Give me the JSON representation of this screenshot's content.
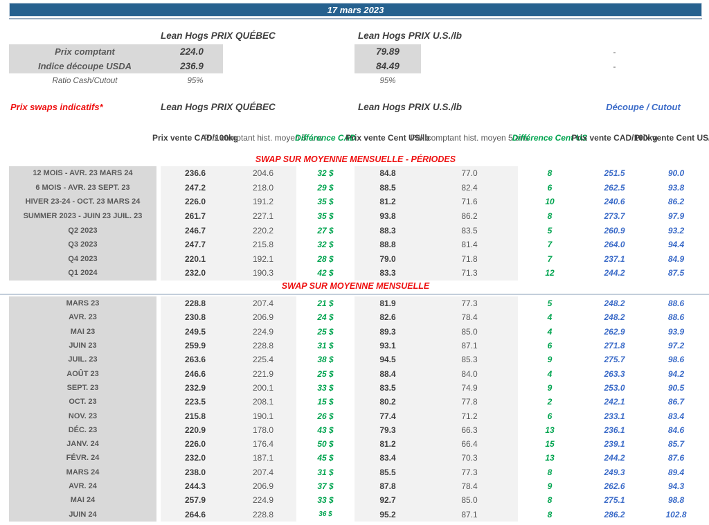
{
  "colors": {
    "bar_blue": "#26618F",
    "label_gray": "#D9D9D9",
    "block_gray": "#F2F2F2",
    "green": "#00A44F",
    "blue": "#3B6BC8",
    "red": "#EE1111"
  },
  "title_bar": {
    "date": "17 mars 2023"
  },
  "summary": {
    "quebec_header": "Lean Hogs PRIX QUÉBEC",
    "us_header": "Lean Hogs PRIX U.S./lb",
    "rows": [
      {
        "label": "Prix comptant",
        "quebec": "224.0",
        "us": "79.89",
        "right": "-"
      },
      {
        "label": "Indice découpe USDA",
        "quebec": "236.9",
        "us": "84.49",
        "right": "-"
      },
      {
        "label": "Ratio Cash/Cutout",
        "quebec": "95%",
        "us": "95%",
        "right": ""
      }
    ]
  },
  "swaps": {
    "title": "Prix swaps indicatifs*",
    "quebec_header": "Lean Hogs PRIX QUÉBEC",
    "us_header": "Lean Hogs PRIX U.S./lb",
    "cutout_header": "Découpe / Cutout",
    "columns": [
      "Prix vente CAD/100kg",
      "Prix comptant hist. moyen 5 ans",
      "Différence CAD",
      "Prix vente Cent US/lb",
      "Prix comptant hist. moyen 5 ans",
      "Différence Cent US",
      "Prix vente CAD/100kg",
      "Prix vente Cent US/lb"
    ],
    "col_keys": [
      "prix-vente-cad",
      "hist-moyen-cad",
      "difference-cad",
      "prix-vente-us",
      "hist-moyen-us",
      "difference-us",
      "cutout-cad",
      "cutout-us"
    ],
    "sections": [
      {
        "header": "SWAP SUR MOYENNE MENSUELLE - PÉRIODES",
        "rows": [
          {
            "label": "12 MOIS - AVR. 23 MARS 24",
            "values": [
              "236.6",
              "204.6",
              "32 $",
              "84.8",
              "77.0",
              "8",
              "251.5",
              "90.0"
            ]
          },
          {
            "label": "6 MOIS - AVR. 23 SEPT. 23",
            "values": [
              "247.2",
              "218.0",
              "29 $",
              "88.5",
              "82.4",
              "6",
              "262.5",
              "93.8"
            ]
          },
          {
            "label": "HIVER 23-24 -  OCT. 23 MARS 24",
            "values": [
              "226.0",
              "191.2",
              "35 $",
              "81.2",
              "71.6",
              "10",
              "240.6",
              "86.2"
            ]
          },
          {
            "label": "SUMMER 2023 - JUIN 23 JUIL. 23",
            "values": [
              "261.7",
              "227.1",
              "35 $",
              "93.8",
              "86.2",
              "8",
              "273.7",
              "97.9"
            ]
          },
          {
            "label": "Q2 2023",
            "values": [
              "246.7",
              "220.2",
              "27 $",
              "88.3",
              "83.5",
              "5",
              "260.9",
              "93.2"
            ]
          },
          {
            "label": "Q3 2023",
            "values": [
              "247.7",
              "215.8",
              "32 $",
              "88.8",
              "81.4",
              "7",
              "264.0",
              "94.4"
            ]
          },
          {
            "label": "Q4 2023",
            "values": [
              "220.1",
              "192.1",
              "28 $",
              "79.0",
              "71.8",
              "7",
              "237.1",
              "84.9"
            ]
          },
          {
            "label": "Q1 2024",
            "values": [
              "232.0",
              "190.3",
              "42 $",
              "83.3",
              "71.3",
              "12",
              "244.2",
              "87.5"
            ]
          }
        ]
      },
      {
        "header": "SWAP SUR MOYENNE MENSUELLE",
        "rows": [
          {
            "label": "MARS 23",
            "values": [
              "228.8",
              "207.4",
              "21 $",
              "81.9",
              "77.3",
              "5",
              "248.2",
              "88.6"
            ]
          },
          {
            "label": "AVR. 23",
            "values": [
              "230.8",
              "206.9",
              "24 $",
              "82.6",
              "78.4",
              "4",
              "248.2",
              "88.6"
            ]
          },
          {
            "label": "MAI 23",
            "values": [
              "249.5",
              "224.9",
              "25 $",
              "89.3",
              "85.0",
              "4",
              "262.9",
              "93.9"
            ]
          },
          {
            "label": "JUIN 23",
            "values": [
              "259.9",
              "228.8",
              "31 $",
              "93.1",
              "87.1",
              "6",
              "271.8",
              "97.2"
            ]
          },
          {
            "label": "JUIL. 23",
            "values": [
              "263.6",
              "225.4",
              "38 $",
              "94.5",
              "85.3",
              "9",
              "275.7",
              "98.6"
            ]
          },
          {
            "label": "AOÛT 23",
            "values": [
              "246.6",
              "221.9",
              "25 $",
              "88.4",
              "84.0",
              "4",
              "263.3",
              "94.2"
            ]
          },
          {
            "label": "SEPT. 23",
            "values": [
              "232.9",
              "200.1",
              "33 $",
              "83.5",
              "74.9",
              "9",
              "253.0",
              "90.5"
            ]
          },
          {
            "label": "OCT. 23",
            "values": [
              "223.5",
              "208.1",
              "15 $",
              "80.2",
              "77.8",
              "2",
              "242.1",
              "86.7"
            ]
          },
          {
            "label": "NOV. 23",
            "values": [
              "215.8",
              "190.1",
              "26 $",
              "77.4",
              "71.2",
              "6",
              "233.1",
              "83.4"
            ]
          },
          {
            "label": "DÉC. 23",
            "values": [
              "220.9",
              "178.0",
              "43 $",
              "79.3",
              "66.3",
              "13",
              "236.1",
              "84.6"
            ]
          },
          {
            "label": "JANV. 24",
            "values": [
              "226.0",
              "176.4",
              "50 $",
              "81.2",
              "66.4",
              "15",
              "239.1",
              "85.7"
            ]
          },
          {
            "label": "FÉVR. 24",
            "values": [
              "232.0",
              "187.1",
              "45 $",
              "83.4",
              "70.3",
              "13",
              "244.2",
              "87.6"
            ]
          },
          {
            "label": "MARS 24",
            "values": [
              "238.0",
              "207.4",
              "31 $",
              "85.5",
              "77.3",
              "8",
              "249.3",
              "89.4"
            ]
          },
          {
            "label": "AVR. 24",
            "values": [
              "244.3",
              "206.9",
              "37 $",
              "87.8",
              "78.4",
              "9",
              "262.6",
              "94.3"
            ]
          },
          {
            "label": "MAI 24",
            "values": [
              "257.9",
              "224.9",
              "33 $",
              "92.7",
              "85.0",
              "8",
              "275.1",
              "98.8"
            ]
          },
          {
            "label": "JUIN 24",
            "values": [
              "264.6",
              "228.8",
              "36 $",
              "95.2",
              "87.1",
              "8",
              "286.2",
              "102.8"
            ],
            "small_diff": true
          }
        ]
      }
    ]
  }
}
